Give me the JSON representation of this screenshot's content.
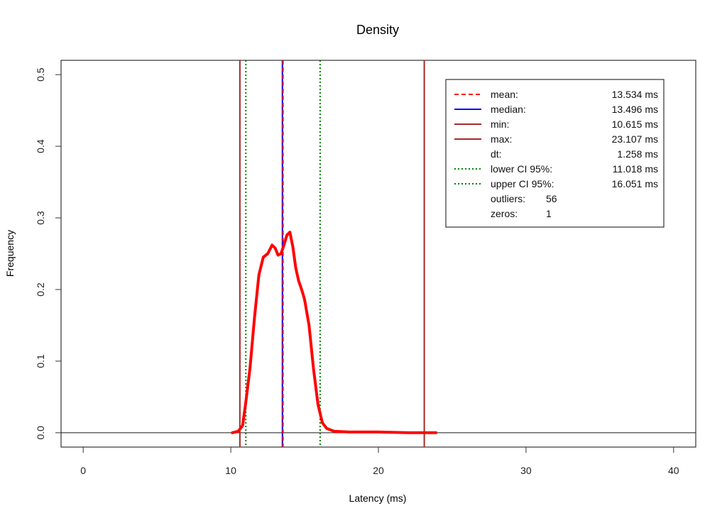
{
  "chart_data": {
    "type": "line",
    "title": "Density",
    "xlabel": "Latency (ms)",
    "ylabel": "Frequency",
    "xlim": [
      -1.5,
      41.5
    ],
    "ylim": [
      -0.02,
      0.52
    ],
    "x_ticks": [
      0,
      10,
      20,
      30,
      40
    ],
    "y_ticks": [
      0.0,
      0.1,
      0.2,
      0.3,
      0.4,
      0.5
    ],
    "x_tick_labels": [
      "0",
      "10",
      "20",
      "30",
      "40"
    ],
    "y_tick_labels": [
      "0.0",
      "0.1",
      "0.2",
      "0.3",
      "0.4",
      "0.5"
    ],
    "grid": false,
    "legend_position": "top-right",
    "density": {
      "color": "#ff0000",
      "x": [
        10.1,
        10.5,
        10.8,
        11.0,
        11.3,
        11.6,
        11.9,
        12.2,
        12.5,
        12.8,
        13.0,
        13.2,
        13.4,
        13.6,
        13.8,
        14.0,
        14.2,
        14.4,
        14.6,
        14.8,
        15.0,
        15.3,
        15.6,
        15.9,
        16.2,
        16.5,
        17.0,
        18.0,
        20.0,
        22.0,
        23.9
      ],
      "y": [
        0.0,
        0.002,
        0.01,
        0.04,
        0.09,
        0.16,
        0.22,
        0.245,
        0.25,
        0.262,
        0.258,
        0.248,
        0.25,
        0.262,
        0.276,
        0.28,
        0.26,
        0.23,
        0.212,
        0.2,
        0.186,
        0.15,
        0.09,
        0.04,
        0.014,
        0.006,
        0.002,
        0.001,
        0.001,
        0.0,
        0.0
      ]
    },
    "vlines": [
      {
        "key": "min",
        "x": 10.615,
        "color": "#a52a2a",
        "style": "solid"
      },
      {
        "key": "lower_ci",
        "x": 11.018,
        "color": "#008000",
        "style": "dotted"
      },
      {
        "key": "median",
        "x": 13.496,
        "color": "#0000ff",
        "style": "solid"
      },
      {
        "key": "mean",
        "x": 13.534,
        "color": "#ff0000",
        "style": "dashed"
      },
      {
        "key": "upper_ci",
        "x": 16.051,
        "color": "#008000",
        "style": "dotted"
      },
      {
        "key": "max",
        "x": 23.107,
        "color": "#a52a2a",
        "style": "solid"
      }
    ],
    "legend": [
      {
        "label": "mean:",
        "value": "13.534 ms",
        "color": "#ff0000",
        "style": "dashed"
      },
      {
        "label": "median:",
        "value": "13.496 ms",
        "color": "#0000ff",
        "style": "solid"
      },
      {
        "label": "min:",
        "value": "10.615 ms",
        "color": "#a52a2a",
        "style": "solid"
      },
      {
        "label": "max:",
        "value": "23.107 ms",
        "color": "#a52a2a",
        "style": "solid"
      },
      {
        "label": "dt:",
        "value": "1.258 ms",
        "color": "",
        "style": "none"
      },
      {
        "label": "lower CI 95%:",
        "value": "11.018 ms",
        "color": "#008000",
        "style": "dotted"
      },
      {
        "label": "upper CI 95%:",
        "value": "16.051 ms",
        "color": "#008000",
        "style": "dotted"
      },
      {
        "label": "outliers:",
        "value": "56",
        "color": "",
        "style": "none"
      },
      {
        "label": "zeros:",
        "value": "1",
        "color": "",
        "style": "none"
      }
    ]
  }
}
